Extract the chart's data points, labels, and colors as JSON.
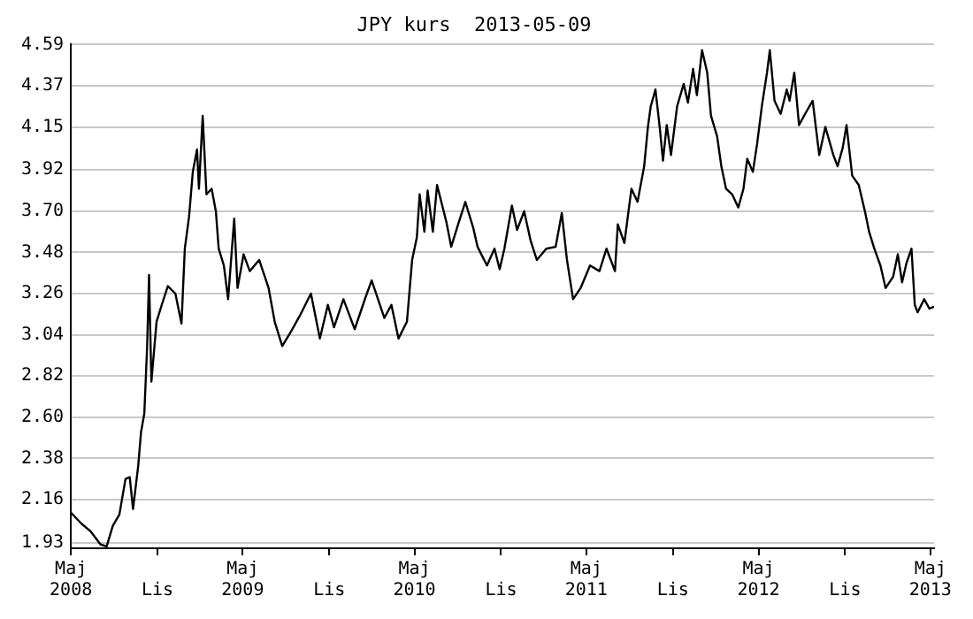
{
  "chart_data": {
    "type": "line",
    "title": "JPY kurs  2013-05-09",
    "x": [
      "2008-05-01",
      "2008-05-24",
      "2008-06-12",
      "2008-07-03",
      "2008-07-16",
      "2008-07-29",
      "2008-08-12",
      "2008-08-25",
      "2008-09-03",
      "2008-09-10",
      "2008-09-21",
      "2008-09-27",
      "2008-10-04",
      "2008-10-10",
      "2008-10-14",
      "2008-10-19",
      "2008-10-30",
      "2008-11-10",
      "2008-11-23",
      "2008-12-09",
      "2008-12-22",
      "2008-12-29",
      "2009-01-07",
      "2009-01-15",
      "2009-01-24",
      "2009-01-28",
      "2009-02-05",
      "2009-02-13",
      "2009-02-24",
      "2009-03-05",
      "2009-03-11",
      "2009-03-22",
      "2009-03-31",
      "2009-04-13",
      "2009-04-20",
      "2009-05-03",
      "2009-05-16",
      "2009-06-05",
      "2009-06-25",
      "2009-07-08",
      "2009-07-24",
      "2009-08-10",
      "2009-08-30",
      "2009-09-23",
      "2009-10-12",
      "2009-10-29",
      "2009-11-11",
      "2009-12-01",
      "2009-12-25",
      "2010-01-17",
      "2010-01-30",
      "2010-02-26",
      "2010-03-13",
      "2010-03-28",
      "2010-04-15",
      "2010-04-26",
      "2010-05-06",
      "2010-05-12",
      "2010-05-22",
      "2010-05-29",
      "2010-06-09",
      "2010-06-18",
      "2010-07-08",
      "2010-07-18",
      "2010-08-03",
      "2010-08-17",
      "2010-09-03",
      "2010-09-12",
      "2010-10-02",
      "2010-10-18",
      "2010-10-29",
      "2010-11-08",
      "2010-11-24",
      "2010-12-05",
      "2010-12-20",
      "2011-01-03",
      "2011-01-16",
      "2011-02-05",
      "2011-02-25",
      "2011-03-10",
      "2011-03-21",
      "2011-04-03",
      "2011-04-19",
      "2011-05-09",
      "2011-05-29",
      "2011-06-13",
      "2011-07-01",
      "2011-07-07",
      "2011-07-21",
      "2011-08-05",
      "2011-08-18",
      "2011-09-01",
      "2011-09-09",
      "2011-09-15",
      "2011-09-25",
      "2011-10-04",
      "2011-10-11",
      "2011-10-19",
      "2011-10-28",
      "2011-11-10",
      "2011-11-24",
      "2011-12-03",
      "2011-12-14",
      "2011-12-22",
      "2012-01-02",
      "2012-01-13",
      "2012-01-21",
      "2012-02-03",
      "2012-02-12",
      "2012-02-22",
      "2012-03-06",
      "2012-03-19",
      "2012-03-30",
      "2012-04-07",
      "2012-04-19",
      "2012-04-28",
      "2012-05-08",
      "2012-05-19",
      "2012-05-25",
      "2012-06-04",
      "2012-06-17",
      "2012-06-30",
      "2012-07-06",
      "2012-07-16",
      "2012-07-26",
      "2012-08-08",
      "2012-08-24",
      "2012-09-07",
      "2012-09-20",
      "2012-10-07",
      "2012-10-16",
      "2012-10-27",
      "2012-11-04",
      "2012-11-16",
      "2012-11-30",
      "2012-12-13",
      "2012-12-22",
      "2013-01-02",
      "2013-01-15",
      "2013-01-26",
      "2013-02-11",
      "2013-02-21",
      "2013-03-02",
      "2013-03-11",
      "2013-03-22",
      "2013-03-29",
      "2013-04-04",
      "2013-04-18",
      "2013-04-29",
      "2013-05-09"
    ],
    "series": [
      {
        "color": "#000000",
        "values": [
          2.09,
          2.03,
          1.99,
          1.92,
          1.91,
          2.02,
          2.08,
          2.27,
          2.28,
          2.11,
          2.34,
          2.52,
          2.62,
          2.98,
          3.36,
          2.79,
          3.11,
          3.2,
          3.3,
          3.26,
          3.1,
          3.5,
          3.67,
          3.91,
          4.03,
          3.82,
          4.21,
          3.79,
          3.82,
          3.7,
          3.5,
          3.41,
          3.23,
          3.66,
          3.29,
          3.47,
          3.38,
          3.44,
          3.29,
          3.11,
          2.98,
          3.05,
          3.14,
          3.26,
          3.02,
          3.2,
          3.08,
          3.23,
          3.07,
          3.24,
          3.33,
          3.13,
          3.2,
          3.02,
          3.11,
          3.44,
          3.56,
          3.79,
          3.59,
          3.81,
          3.59,
          3.84,
          3.64,
          3.51,
          3.64,
          3.75,
          3.61,
          3.51,
          3.41,
          3.5,
          3.39,
          3.5,
          3.73,
          3.6,
          3.7,
          3.54,
          3.44,
          3.5,
          3.51,
          3.69,
          3.44,
          3.23,
          3.29,
          3.41,
          3.38,
          3.5,
          3.38,
          3.63,
          3.53,
          3.82,
          3.75,
          3.94,
          4.15,
          4.26,
          4.35,
          4.15,
          3.97,
          4.16,
          4.0,
          4.26,
          4.38,
          4.28,
          4.46,
          4.32,
          4.56,
          4.44,
          4.21,
          4.1,
          3.94,
          3.82,
          3.79,
          3.72,
          3.82,
          3.98,
          3.91,
          4.06,
          4.26,
          4.44,
          4.56,
          4.29,
          4.22,
          4.35,
          4.29,
          4.44,
          4.16,
          4.22,
          4.29,
          4.0,
          4.15,
          4.0,
          3.94,
          4.04,
          4.16,
          3.89,
          3.84,
          3.7,
          3.59,
          3.5,
          3.41,
          3.29,
          3.35,
          3.47,
          3.32,
          3.42,
          3.5,
          3.2,
          3.16,
          3.23,
          3.18,
          3.19
        ]
      }
    ],
    "xlim": [
      "2008-05-01",
      "2013-05-09"
    ],
    "xticks": [
      {
        "value": "2008-05-01",
        "label": "Maj\n2008"
      },
      {
        "value": "2008-11-01",
        "label": "Lis"
      },
      {
        "value": "2009-05-01",
        "label": "Maj\n2009"
      },
      {
        "value": "2009-11-01",
        "label": "Lis"
      },
      {
        "value": "2010-05-01",
        "label": "Maj\n2010"
      },
      {
        "value": "2010-11-01",
        "label": "Lis"
      },
      {
        "value": "2011-05-01",
        "label": "Maj\n2011"
      },
      {
        "value": "2011-11-01",
        "label": "Lis"
      },
      {
        "value": "2012-05-01",
        "label": "Maj\n2012"
      },
      {
        "value": "2012-11-01",
        "label": "Lis"
      },
      {
        "value": "2013-05-01",
        "label": "Maj\n2013"
      }
    ],
    "ylim": [
      1.9,
      4.59
    ],
    "yticks": [
      1.93,
      2.16,
      2.38,
      {
        "value": 2.6,
        "label": "2.60"
      },
      2.82,
      3.04,
      3.26,
      3.48,
      {
        "value": 3.7,
        "label": "3.70"
      },
      3.92,
      4.15,
      4.37,
      4.59
    ],
    "grid": "y",
    "legend": false,
    "marker": "none",
    "line_style": "solid"
  }
}
